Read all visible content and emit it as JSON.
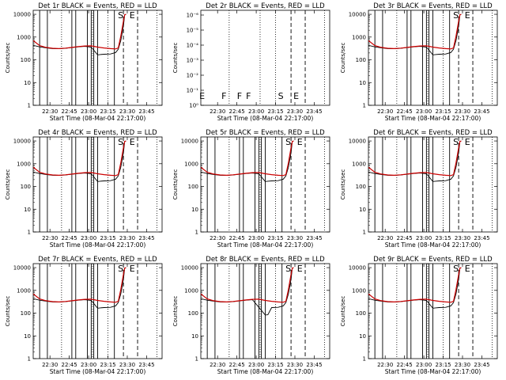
{
  "x_ticks": [
    "22:30",
    "22:45",
    "23:00",
    "23:15",
    "23:30",
    "23:45"
  ],
  "xlabel": "Start Time (08-Mar-04 22:17:00)",
  "ylabel": "Counts/sec",
  "y_ticks_std": [
    "1",
    "10",
    "100",
    "1000",
    "10000"
  ],
  "y_ticks_p2": [
    "10⁰",
    "10⁻¹",
    "10⁻²",
    "10⁻³",
    "10⁻⁴",
    "10⁻⁵",
    "10⁻⁶"
  ],
  "panels": [
    {
      "title": "Det 1r BLACK = Events, RED = LLD",
      "flags": [
        "S",
        "E"
      ],
      "hasData": true,
      "variant": "a"
    },
    {
      "title": "Det 2r BLACK = Events, RED = LLD",
      "flags": [
        "E",
        "F",
        "F",
        "F",
        "S",
        "E"
      ],
      "hasData": false,
      "variant": "b"
    },
    {
      "title": "Det 3r BLACK = Events, RED = LLD",
      "flags": [
        "S",
        "E"
      ],
      "hasData": true,
      "variant": "a"
    },
    {
      "title": "Det 4r BLACK = Events, RED = LLD",
      "flags": [
        "S",
        "E"
      ],
      "hasData": true,
      "variant": "a"
    },
    {
      "title": "Det 5r BLACK = Events, RED = LLD",
      "flags": [
        "S",
        "E"
      ],
      "hasData": true,
      "variant": "a"
    },
    {
      "title": "Det 6r BLACK = Events, RED = LLD",
      "flags": [
        "S",
        "E"
      ],
      "hasData": true,
      "variant": "a"
    },
    {
      "title": "Det 7r BLACK = Events, RED = LLD",
      "flags": [
        "S",
        "E"
      ],
      "hasData": true,
      "variant": "a"
    },
    {
      "title": "Det 8r BLACK = Events, RED = LLD",
      "flags": [
        "S",
        "E"
      ],
      "hasData": true,
      "variant": "c"
    },
    {
      "title": "Det 9r BLACK = Events, RED = LLD",
      "flags": [
        "S",
        "E"
      ],
      "hasData": true,
      "variant": "a"
    }
  ],
  "chart_data": {
    "type": "line",
    "x_unit": "minutes since 22:17:00",
    "x_range": [
      0,
      100
    ],
    "y_scale": "log",
    "ylim": [
      1,
      15000
    ],
    "series": [
      {
        "name": "Events",
        "color": "#000000",
        "x": [
          0,
          5,
          10,
          15,
          20,
          25,
          30,
          35,
          40,
          45,
          50,
          52,
          55,
          60,
          64,
          66,
          68,
          70,
          71,
          72
        ],
        "values": [
          430,
          370,
          335,
          310,
          305,
          320,
          345,
          370,
          390,
          360,
          165,
          170,
          175,
          180,
          210,
          290,
          700,
          3000,
          9500,
          10000
        ]
      },
      {
        "name": "LLD",
        "color": "#cc0000",
        "x": [
          0,
          5,
          10,
          15,
          20,
          25,
          30,
          35,
          40,
          45,
          50,
          55,
          60,
          64,
          66,
          68,
          70,
          71,
          72
        ],
        "values": [
          700,
          420,
          350,
          320,
          310,
          325,
          350,
          380,
          405,
          410,
          360,
          330,
          310,
          300,
          330,
          1100,
          5000,
          9500,
          10000
        ]
      }
    ]
  }
}
